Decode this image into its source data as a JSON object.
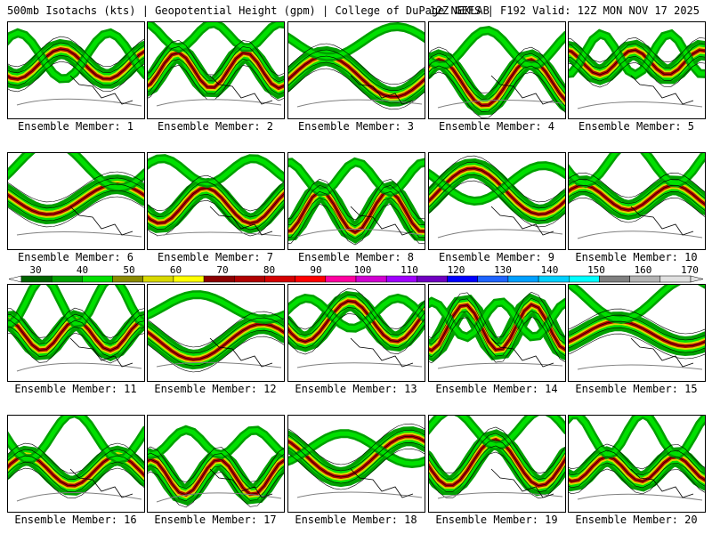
{
  "header": {
    "left": "500mb Isotachs (kts) | Geopotential Height (gpm) | College of DuPage NEXLAB",
    "right": "12Z GEFS | F192 Valid: 12Z MON NOV 17 2025"
  },
  "colorbar": {
    "labels": [
      "30",
      "40",
      "50",
      "60",
      "70",
      "80",
      "90",
      "100",
      "110",
      "120",
      "130",
      "140",
      "150",
      "160",
      "170"
    ],
    "colors": [
      "#006400",
      "#00a000",
      "#00e000",
      "#8b8b00",
      "#d8d800",
      "#ffff00",
      "#8b0000",
      "#b00000",
      "#d40000",
      "#ff0000",
      "#ff00a0",
      "#d000d0",
      "#a000ff",
      "#7000c0",
      "#0000ff",
      "#1e64ff",
      "#00a0ff",
      "#00d0ff",
      "#00ffff",
      "#808080",
      "#b4b4b4",
      "#e0e0e0"
    ]
  },
  "members": [
    {
      "label": "Ensemble Member: 1"
    },
    {
      "label": "Ensemble Member: 2"
    },
    {
      "label": "Ensemble Member: 3"
    },
    {
      "label": "Ensemble Member: 4"
    },
    {
      "label": "Ensemble Member: 5"
    },
    {
      "label": "Ensemble Member: 6"
    },
    {
      "label": "Ensemble Member: 7"
    },
    {
      "label": "Ensemble Member: 8"
    },
    {
      "label": "Ensemble Member: 9"
    },
    {
      "label": "Ensemble Member: 10"
    },
    {
      "label": "Ensemble Member: 11"
    },
    {
      "label": "Ensemble Member: 12"
    },
    {
      "label": "Ensemble Member: 13"
    },
    {
      "label": "Ensemble Member: 14"
    },
    {
      "label": "Ensemble Member: 15"
    },
    {
      "label": "Ensemble Member: 16"
    },
    {
      "label": "Ensemble Member: 17"
    },
    {
      "label": "Ensemble Member: 18"
    },
    {
      "label": "Ensemble Member: 19"
    },
    {
      "label": "Ensemble Member: 20"
    }
  ]
}
